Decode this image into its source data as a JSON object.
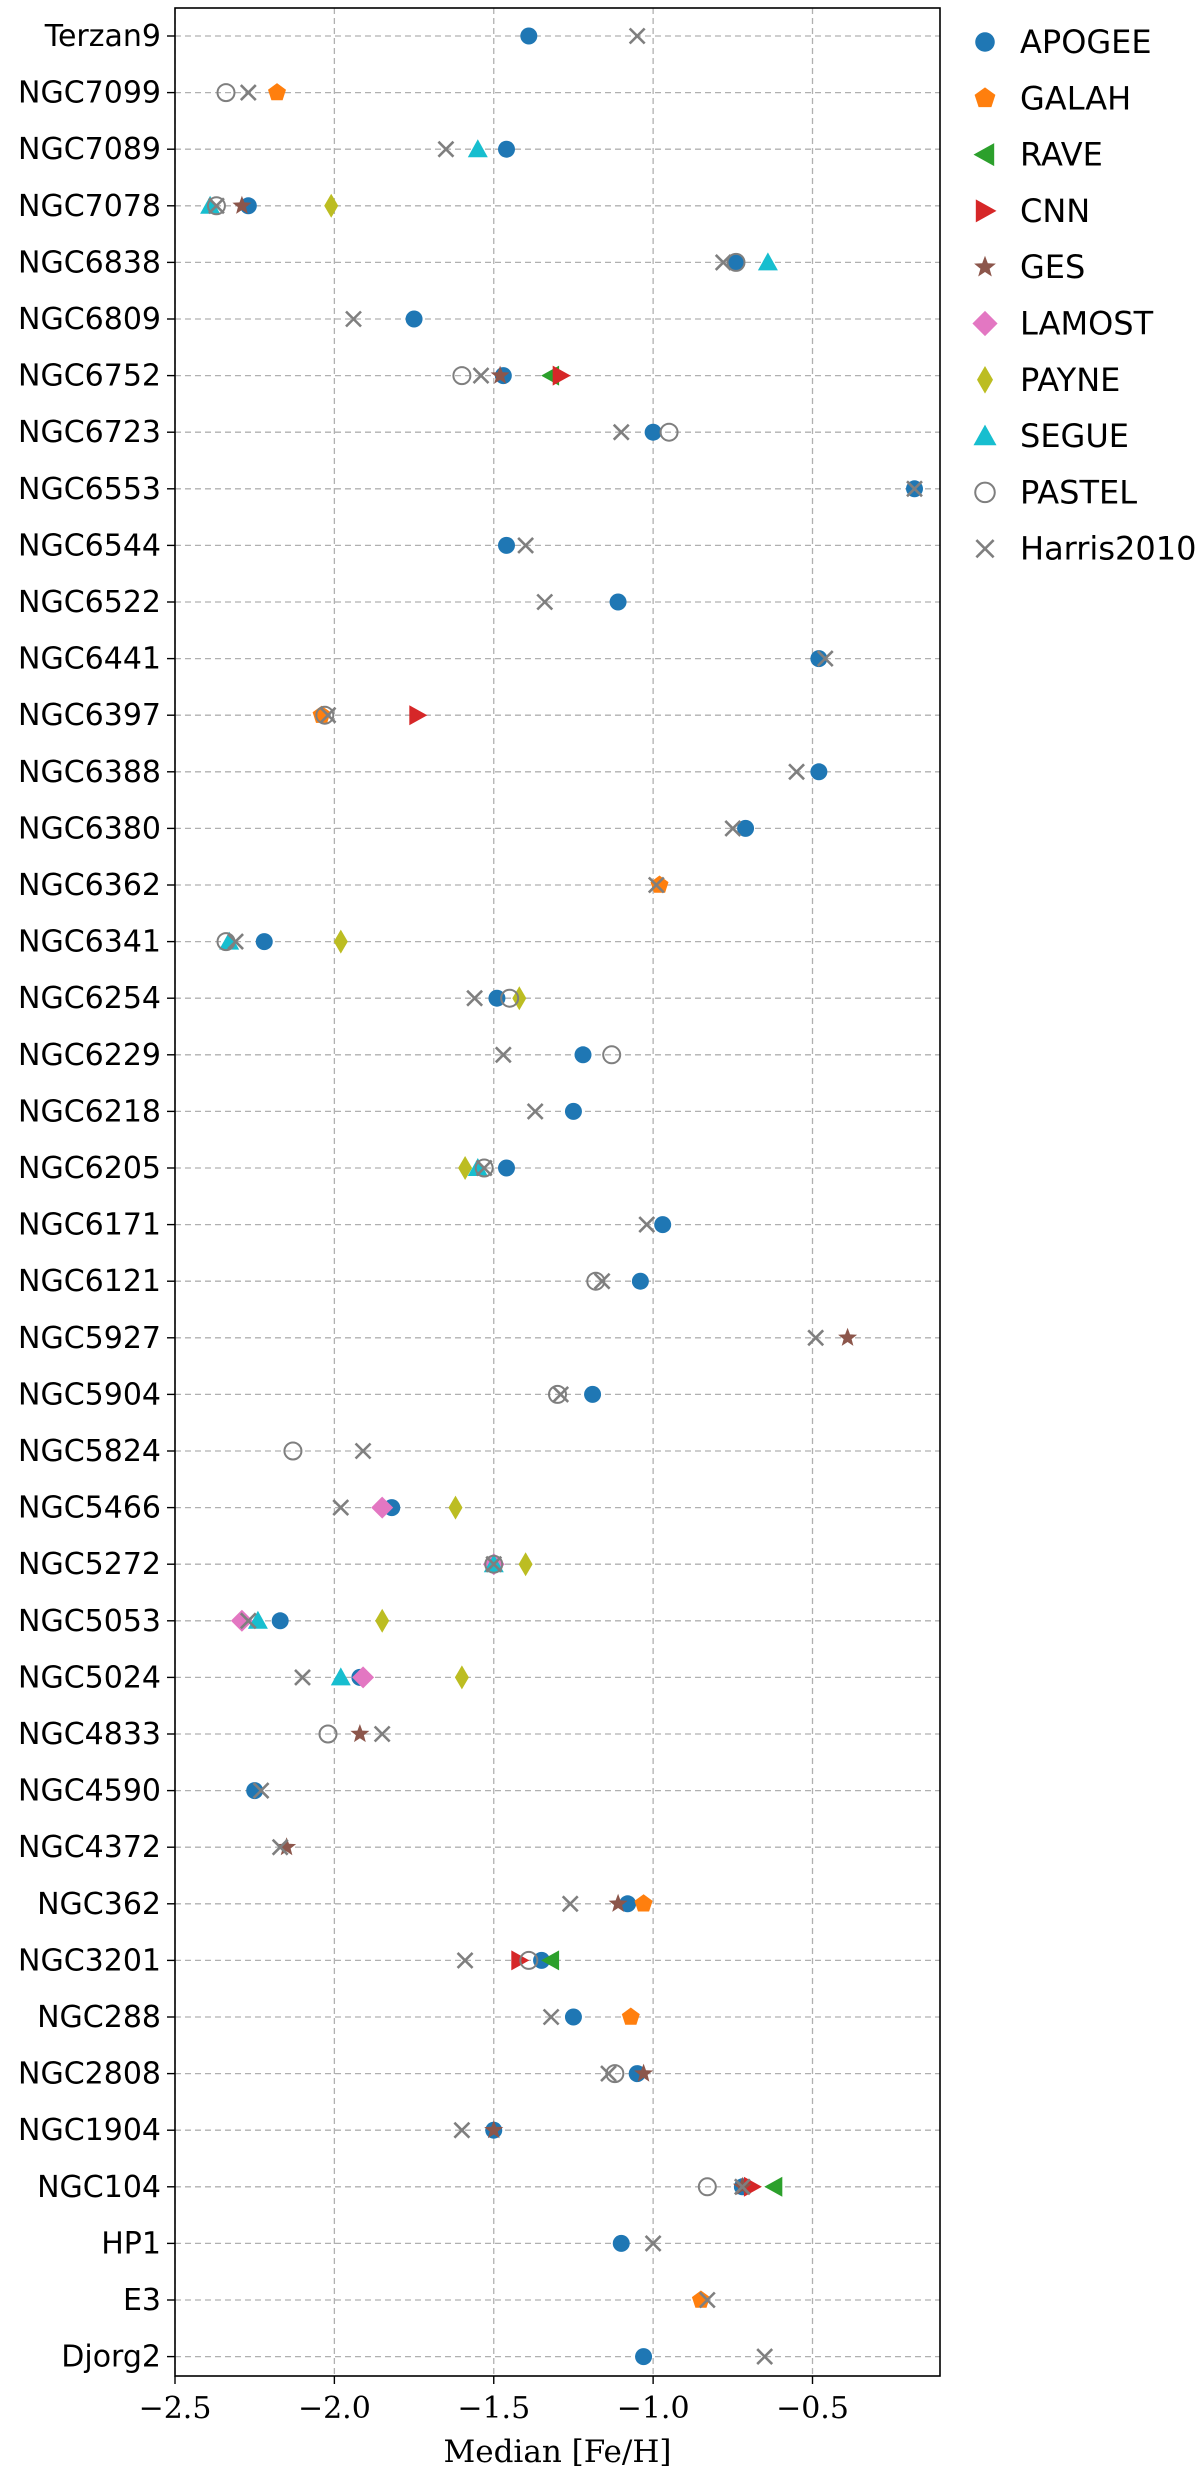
{
  "chart_data": {
    "type": "scatter",
    "title": "",
    "xlabel": "Median [Fe/H]",
    "ylabel": "",
    "xlim": [
      -2.5,
      -0.1
    ],
    "xticks": [
      -2.5,
      -2.0,
      -1.5,
      -1.0,
      -0.5
    ],
    "xtick_labels": [
      "−2.5",
      "−2.0",
      "−1.5",
      "−1.0",
      "−0.5"
    ],
    "grid": true,
    "legend_position": "right, outside plot",
    "categories": [
      "Terzan9",
      "NGC7099",
      "NGC7089",
      "NGC7078",
      "NGC6838",
      "NGC6809",
      "NGC6752",
      "NGC6723",
      "NGC6553",
      "NGC6544",
      "NGC6522",
      "NGC6441",
      "NGC6397",
      "NGC6388",
      "NGC6380",
      "NGC6362",
      "NGC6341",
      "NGC6254",
      "NGC6229",
      "NGC6218",
      "NGC6205",
      "NGC6171",
      "NGC6121",
      "NGC5927",
      "NGC5904",
      "NGC5824",
      "NGC5466",
      "NGC5272",
      "NGC5053",
      "NGC5024",
      "NGC4833",
      "NGC4590",
      "NGC4372",
      "NGC362",
      "NGC3201",
      "NGC288",
      "NGC2808",
      "NGC1904",
      "NGC104",
      "HP1",
      "E3",
      "Djorg2"
    ],
    "series": [
      {
        "name": "APOGEE",
        "marker": "circle",
        "color": "#1f77b4",
        "points": [
          [
            "Terzan9",
            -1.39
          ],
          [
            "NGC7089",
            -1.46
          ],
          [
            "NGC7078",
            -2.27
          ],
          [
            "NGC6838",
            -0.74
          ],
          [
            "NGC6809",
            -1.75
          ],
          [
            "NGC6752",
            -1.47
          ],
          [
            "NGC6723",
            -1.0
          ],
          [
            "NGC6553",
            -0.18
          ],
          [
            "NGC6544",
            -1.46
          ],
          [
            "NGC6522",
            -1.11
          ],
          [
            "NGC6441",
            -0.48
          ],
          [
            "NGC6388",
            -0.48
          ],
          [
            "NGC6380",
            -0.71
          ],
          [
            "NGC6341",
            -2.22
          ],
          [
            "NGC6254",
            -1.49
          ],
          [
            "NGC6229",
            -1.22
          ],
          [
            "NGC6218",
            -1.25
          ],
          [
            "NGC6205",
            -1.46
          ],
          [
            "NGC6171",
            -0.97
          ],
          [
            "NGC6121",
            -1.04
          ],
          [
            "NGC5904",
            -1.19
          ],
          [
            "NGC5466",
            -1.82
          ],
          [
            "NGC5272",
            -1.5
          ],
          [
            "NGC5053",
            -2.17
          ],
          [
            "NGC5024",
            -1.92
          ],
          [
            "NGC4590",
            -2.25
          ],
          [
            "NGC362",
            -1.08
          ],
          [
            "NGC3201",
            -1.35
          ],
          [
            "NGC288",
            -1.25
          ],
          [
            "NGC2808",
            -1.05
          ],
          [
            "NGC1904",
            -1.5
          ],
          [
            "NGC104",
            -0.72
          ],
          [
            "HP1",
            -1.1
          ],
          [
            "Djorg2",
            -1.03
          ]
        ]
      },
      {
        "name": "GALAH",
        "marker": "pentagon",
        "color": "#ff7f0e",
        "points": [
          [
            "NGC7099",
            -2.18
          ],
          [
            "NGC6397",
            -2.04
          ],
          [
            "NGC6362",
            -0.98
          ],
          [
            "NGC362",
            -1.03
          ],
          [
            "NGC288",
            -1.07
          ],
          [
            "E3",
            -0.85
          ]
        ]
      },
      {
        "name": "RAVE",
        "marker": "triangle-left",
        "color": "#2ca02c",
        "points": [
          [
            "NGC6752",
            -1.32
          ],
          [
            "NGC3201",
            -1.32
          ],
          [
            "NGC104",
            -0.62
          ]
        ]
      },
      {
        "name": "CNN",
        "marker": "triangle-right",
        "color": "#d62728",
        "points": [
          [
            "NGC6752",
            -1.29
          ],
          [
            "NGC6397",
            -1.74
          ],
          [
            "NGC3201",
            -1.42
          ],
          [
            "NGC104",
            -0.69
          ]
        ]
      },
      {
        "name": "GES",
        "marker": "star",
        "color": "#8c564b",
        "points": [
          [
            "NGC7078",
            -2.29
          ],
          [
            "NGC6752",
            -1.48
          ],
          [
            "NGC5927",
            -0.39
          ],
          [
            "NGC4833",
            -1.92
          ],
          [
            "NGC4372",
            -2.15
          ],
          [
            "NGC362",
            -1.11
          ],
          [
            "NGC2808",
            -1.03
          ],
          [
            "NGC1904",
            -1.5
          ],
          [
            "NGC104",
            -0.72
          ]
        ]
      },
      {
        "name": "LAMOST",
        "marker": "diamond",
        "color": "#e377c2",
        "points": [
          [
            "NGC5466",
            -1.85
          ],
          [
            "NGC5272",
            -1.5
          ],
          [
            "NGC5053",
            -2.29
          ],
          [
            "NGC5024",
            -1.91
          ]
        ]
      },
      {
        "name": "PAYNE",
        "marker": "thin-diamond",
        "color": "#bcbd22",
        "points": [
          [
            "NGC7078",
            -2.01
          ],
          [
            "NGC6341",
            -1.98
          ],
          [
            "NGC6254",
            -1.42
          ],
          [
            "NGC6205",
            -1.59
          ],
          [
            "NGC5466",
            -1.62
          ],
          [
            "NGC5272",
            -1.4
          ],
          [
            "NGC5053",
            -1.85
          ],
          [
            "NGC5024",
            -1.6
          ]
        ]
      },
      {
        "name": "SEGUE",
        "marker": "triangle-up",
        "color": "#17becf",
        "points": [
          [
            "NGC7089",
            -1.55
          ],
          [
            "NGC7078",
            -2.39
          ],
          [
            "NGC6838",
            -0.64
          ],
          [
            "NGC6341",
            -2.33
          ],
          [
            "NGC6205",
            -1.55
          ],
          [
            "NGC5272",
            -1.5
          ],
          [
            "NGC5053",
            -2.24
          ],
          [
            "NGC5024",
            -1.98
          ]
        ]
      },
      {
        "name": "PASTEL",
        "marker": "open-circle",
        "color": "#7f7f7f",
        "points": [
          [
            "NGC7099",
            -2.34
          ],
          [
            "NGC7078",
            -2.37
          ],
          [
            "NGC6838",
            -0.74
          ],
          [
            "NGC6752",
            -1.6
          ],
          [
            "NGC6723",
            -0.95
          ],
          [
            "NGC6397",
            -2.03
          ],
          [
            "NGC6341",
            -2.34
          ],
          [
            "NGC6254",
            -1.45
          ],
          [
            "NGC6229",
            -1.13
          ],
          [
            "NGC6205",
            -1.53
          ],
          [
            "NGC6121",
            -1.18
          ],
          [
            "NGC5904",
            -1.3
          ],
          [
            "NGC5824",
            -2.13
          ],
          [
            "NGC5272",
            -1.5
          ],
          [
            "NGC4833",
            -2.02
          ],
          [
            "NGC3201",
            -1.39
          ],
          [
            "NGC2808",
            -1.12
          ],
          [
            "NGC104",
            -0.83
          ]
        ]
      },
      {
        "name": "Harris2010",
        "marker": "x",
        "color": "#7f7f7f",
        "points": [
          [
            "Terzan9",
            -1.05
          ],
          [
            "NGC7099",
            -2.27
          ],
          [
            "NGC7089",
            -1.65
          ],
          [
            "NGC7078",
            -2.37
          ],
          [
            "NGC6838",
            -0.78
          ],
          [
            "NGC6809",
            -1.94
          ],
          [
            "NGC6752",
            -1.54
          ],
          [
            "NGC6723",
            -1.1
          ],
          [
            "NGC6553",
            -0.18
          ],
          [
            "NGC6544",
            -1.4
          ],
          [
            "NGC6522",
            -1.34
          ],
          [
            "NGC6441",
            -0.46
          ],
          [
            "NGC6397",
            -2.02
          ],
          [
            "NGC6388",
            -0.55
          ],
          [
            "NGC6380",
            -0.75
          ],
          [
            "NGC6362",
            -0.99
          ],
          [
            "NGC6341",
            -2.31
          ],
          [
            "NGC6254",
            -1.56
          ],
          [
            "NGC6229",
            -1.47
          ],
          [
            "NGC6218",
            -1.37
          ],
          [
            "NGC6205",
            -1.53
          ],
          [
            "NGC6171",
            -1.02
          ],
          [
            "NGC6121",
            -1.16
          ],
          [
            "NGC5927",
            -0.49
          ],
          [
            "NGC5904",
            -1.29
          ],
          [
            "NGC5824",
            -1.91
          ],
          [
            "NGC5466",
            -1.98
          ],
          [
            "NGC5272",
            -1.5
          ],
          [
            "NGC5053",
            -2.27
          ],
          [
            "NGC5024",
            -2.1
          ],
          [
            "NGC4833",
            -1.85
          ],
          [
            "NGC4590",
            -2.23
          ],
          [
            "NGC4372",
            -2.17
          ],
          [
            "NGC362",
            -1.26
          ],
          [
            "NGC3201",
            -1.59
          ],
          [
            "NGC288",
            -1.32
          ],
          [
            "NGC2808",
            -1.14
          ],
          [
            "NGC1904",
            -1.6
          ],
          [
            "NGC104",
            -0.72
          ],
          [
            "HP1",
            -1.0
          ],
          [
            "E3",
            -0.83
          ],
          [
            "Djorg2",
            -0.65
          ]
        ]
      }
    ]
  }
}
